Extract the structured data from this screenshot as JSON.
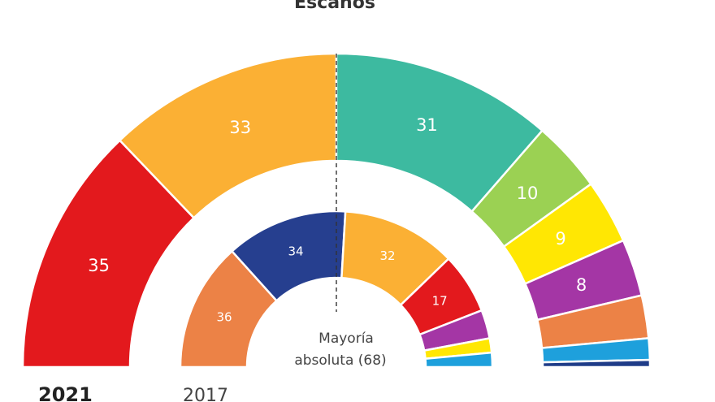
{
  "chart_data": [
    {
      "type": "pie",
      "subtype": "parliament-semicircle",
      "title": "Escaños",
      "year_label": "2021",
      "categories": [
        "",
        "",
        "",
        "",
        "",
        "",
        "",
        "",
        ""
      ],
      "values": [
        35,
        33,
        31,
        10,
        9,
        8,
        6,
        3,
        1
      ],
      "value_labels": [
        "35",
        "33",
        "31",
        "10",
        "9",
        "8",
        "",
        "",
        ""
      ],
      "colors": [
        "#e3191d",
        "#fbb034",
        "#3dbaa0",
        "#9bd153",
        "#ffe703",
        "#a436a5",
        "#ec8246",
        "#1ea0dc",
        "#1f3c88"
      ]
    },
    {
      "type": "pie",
      "subtype": "parliament-semicircle",
      "year_label": "2017",
      "categories": [
        "",
        "",
        "",
        "",
        "",
        "",
        ""
      ],
      "values": [
        36,
        34,
        32,
        17,
        8,
        4,
        4
      ],
      "value_labels": [
        "36",
        "34",
        "32",
        "17",
        "",
        "",
        ""
      ],
      "colors": [
        "#ec8246",
        "#263f8f",
        "#fbb034",
        "#e3191d",
        "#a436a5",
        "#ffe703",
        "#1ea0dc"
      ]
    }
  ],
  "majority_label": "Mayoría absoluta (68)",
  "majority_value": 68
}
